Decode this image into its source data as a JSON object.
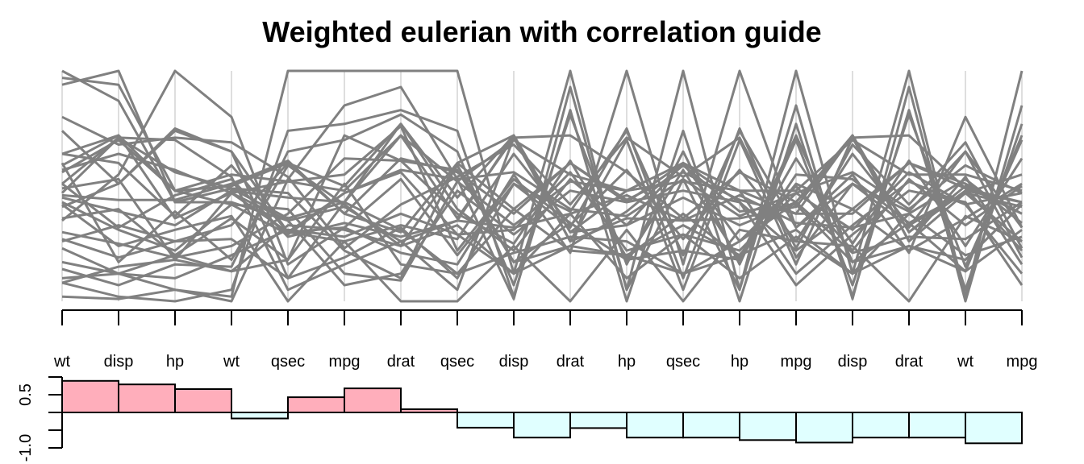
{
  "chart_data": {
    "type": "parallel-coordinates",
    "title": "Weighted eulerian with correlation guide",
    "axes": [
      "wt",
      "disp",
      "hp",
      "wt",
      "qsec",
      "mpg",
      "drat",
      "qsec",
      "disp",
      "drat",
      "hp",
      "qsec",
      "hp",
      "mpg",
      "disp",
      "drat",
      "wt",
      "mpg"
    ],
    "line_color": "#808080",
    "axis_line_color": "#bebebe",
    "series": [
      {
        "values": [
          0.26,
          0.33,
          0.26,
          0.33,
          0.6,
          0.5,
          0.77,
          0.4,
          0.22,
          0.53,
          0.33,
          0.6,
          0.26,
          0.5,
          0.22,
          0.53,
          0.33,
          0.5
        ]
      },
      {
        "values": [
          0.45,
          0.39,
          0.33,
          0.48,
          0.45,
          0.43,
          0.77,
          0.45,
          0.72,
          0.3,
          0.33,
          0.45,
          0.33,
          0.43,
          0.72,
          0.3,
          0.48,
          0.43
        ]
      },
      {
        "values": [
          0.64,
          0.6,
          0.37,
          0.59,
          0.3,
          0.47,
          0.57,
          0.53,
          0.56,
          0.4,
          0.37,
          0.53,
          0.37,
          0.47,
          0.56,
          0.4,
          0.59,
          0.47
        ]
      },
      {
        "values": [
          0.46,
          0.44,
          0.44,
          0.51,
          0.61,
          0.38,
          0.62,
          0.56,
          0.38,
          0.6,
          0.44,
          0.56,
          0.44,
          0.38,
          0.38,
          0.6,
          0.51,
          0.38
        ]
      },
      {
        "values": [
          0.08,
          0.15,
          0.18,
          0.13,
          0.18,
          0.72,
          0.61,
          0.57,
          0.17,
          0.34,
          0.18,
          0.57,
          0.18,
          0.72,
          0.17,
          0.34,
          0.13,
          0.72
        ]
      },
      {
        "values": [
          0.49,
          0.53,
          0.18,
          0.47,
          0.52,
          0.55,
          0.76,
          0.22,
          0.53,
          0.34,
          0.18,
          0.22,
          0.18,
          0.55,
          0.53,
          0.34,
          0.47,
          0.55
        ]
      },
      {
        "values": [
          0.27,
          0.19,
          0.26,
          0.27,
          0.1,
          0.43,
          0.31,
          0.12,
          0.21,
          0.28,
          0.26,
          0.12,
          0.26,
          0.43,
          0.21,
          0.28,
          0.27,
          0.43
        ]
      },
      {
        "values": [
          0.74,
          0.51,
          0.74,
          0.65,
          0.3,
          0.32,
          0.53,
          0.2,
          0.51,
          0.39,
          0.74,
          0.2,
          0.74,
          0.32,
          0.51,
          0.39,
          0.65,
          0.32
        ]
      },
      {
        "values": [
          0.36,
          0.4,
          0.2,
          0.36,
          0.18,
          0.51,
          0.16,
          0.12,
          0.4,
          0.22,
          0.2,
          0.12,
          0.2,
          0.51,
          0.4,
          0.22,
          0.36,
          0.51
        ]
      },
      {
        "values": [
          0.56,
          0.7,
          0.48,
          0.55,
          0.52,
          0.48,
          0.72,
          0.52,
          0.7,
          0.55,
          0.48,
          0.52,
          0.48,
          0.48,
          0.7,
          0.55,
          0.55,
          0.48
        ]
      },
      {
        "values": [
          0.14,
          0.07,
          0.16,
          0.15,
          0.65,
          0.7,
          0.81,
          0.65,
          0.07,
          0.81,
          0.16,
          0.65,
          0.16,
          0.7,
          0.07,
          0.81,
          0.15,
          0.7
        ]
      },
      {
        "values": [
          0.3,
          0.25,
          0.19,
          0.24,
          0.38,
          0.62,
          0.61,
          0.38,
          0.25,
          0.61,
          0.19,
          0.38,
          0.19,
          0.62,
          0.25,
          0.61,
          0.24,
          0.62
        ]
      },
      {
        "values": [
          0.94,
          1.0,
          0.43,
          0.49,
          0.47,
          0.22,
          0.1,
          0.6,
          0.4,
          0.6,
          0.43,
          0.6,
          0.43,
          0.22,
          0.4,
          0.6,
          0.49,
          0.22
        ]
      },
      {
        "values": [
          0.97,
          0.94,
          0.48,
          0.42,
          0.4,
          0.12,
          0.09,
          0.52,
          0.33,
          0.52,
          0.48,
          0.52,
          0.48,
          0.12,
          0.33,
          0.52,
          0.42,
          0.12
        ]
      },
      {
        "values": [
          1.0,
          0.87,
          0.43,
          0.43,
          0.35,
          0.07,
          0.12,
          0.48,
          0.29,
          0.48,
          0.43,
          0.48,
          0.43,
          0.07,
          0.29,
          0.48,
          0.43,
          0.07
        ]
      },
      {
        "values": [
          0.57,
          0.64,
          0.57,
          0.47,
          0.3,
          0.26,
          0.33,
          0.27,
          0.64,
          0.33,
          0.57,
          0.27,
          0.57,
          0.26,
          0.64,
          0.33,
          0.47,
          0.26
        ]
      },
      {
        "values": [
          0.59,
          0.72,
          0.36,
          0.47,
          0.35,
          0.41,
          0.26,
          0.35,
          0.72,
          0.26,
          0.36,
          0.35,
          0.36,
          0.41,
          0.72,
          0.26,
          0.47,
          0.41
        ]
      },
      {
        "values": [
          0.64,
          0.72,
          0.48,
          0.5,
          0.6,
          0.38,
          0.3,
          0.6,
          0.72,
          0.3,
          0.48,
          0.6,
          0.48,
          0.38,
          0.72,
          0.3,
          0.5,
          0.38
        ]
      },
      {
        "values": [
          0.51,
          0.32,
          0.46,
          0.53,
          0.28,
          0.34,
          0.28,
          0.35,
          0.32,
          0.38,
          0.46,
          0.35,
          0.46,
          0.34,
          0.32,
          0.38,
          0.53,
          0.34
        ]
      },
      {
        "values": [
          0.17,
          0.12,
          0.1,
          0.2,
          0.31,
          0.28,
          0.38,
          0.29,
          0.12,
          0.38,
          0.1,
          0.29,
          0.1,
          0.28,
          0.12,
          0.38,
          0.2,
          0.28
        ]
      },
      {
        "values": [
          0.02,
          0.01,
          0.05,
          0.0,
          0.53,
          0.85,
          0.93,
          0.53,
          0.01,
          0.93,
          0.05,
          0.53,
          0.05,
          0.85,
          0.01,
          0.93,
          0.0,
          0.85
        ]
      },
      {
        "values": [
          0.42,
          0.24,
          0.31,
          0.37,
          0.0,
          0.26,
          0.0,
          0.0,
          0.24,
          0.0,
          0.31,
          0.0,
          0.31,
          0.26,
          0.24,
          0.0,
          0.37,
          0.26
        ]
      },
      {
        "values": [
          0.51,
          0.71,
          0.56,
          0.49,
          0.36,
          0.43,
          0.72,
          0.36,
          0.71,
          0.72,
          0.56,
          0.36,
          0.56,
          0.43,
          0.71,
          0.72,
          0.49,
          0.43
        ]
      },
      {
        "values": [
          0.47,
          0.71,
          0.7,
          0.54,
          0.05,
          0.16,
          0.26,
          0.05,
          0.71,
          0.26,
          0.7,
          0.05,
          0.7,
          0.16,
          0.71,
          0.26,
          0.54,
          0.16
        ]
      },
      {
        "values": [
          0.1,
          0.12,
          0.2,
          0.13,
          0.33,
          0.31,
          0.24,
          0.33,
          0.12,
          0.24,
          0.2,
          0.33,
          0.2,
          0.31,
          0.12,
          0.24,
          0.13,
          0.31
        ]
      },
      {
        "values": [
          0.23,
          0.12,
          0.05,
          0.02,
          1.0,
          1.0,
          1.0,
          1.0,
          0.12,
          1.0,
          0.05,
          1.0,
          0.05,
          1.0,
          0.12,
          1.0,
          0.02,
          1.0
        ]
      },
      {
        "values": [
          0.08,
          0.02,
          0.0,
          0.05,
          0.74,
          0.77,
          0.83,
          0.74,
          0.02,
          0.83,
          0.0,
          0.74,
          0.0,
          0.77,
          0.02,
          0.83,
          0.05,
          0.77
        ]
      },
      {
        "values": [
          0.43,
          0.31,
          0.22,
          0.42,
          0.29,
          0.47,
          0.56,
          0.29,
          0.31,
          0.56,
          0.22,
          0.29,
          0.22,
          0.47,
          0.31,
          0.56,
          0.42,
          0.47
        ]
      },
      {
        "values": [
          0.8,
          0.68,
          0.71,
          0.69,
          0.54,
          0.23,
          0.42,
          0.54,
          0.68,
          0.42,
          0.71,
          0.54,
          0.71,
          0.23,
          0.68,
          0.42,
          0.69,
          0.23
        ]
      },
      {
        "values": [
          0.35,
          0.55,
          1.0,
          0.8,
          0.16,
          0.32,
          0.21,
          0.16,
          0.55,
          0.21,
          1.0,
          0.16,
          1.0,
          0.32,
          0.55,
          0.21,
          0.8,
          0.32
        ]
      },
      {
        "values": [
          0.41,
          0.51,
          0.75,
          0.65,
          0.1,
          0.19,
          0.32,
          0.1,
          0.51,
          0.32,
          0.75,
          0.1,
          0.75,
          0.19,
          0.51,
          0.32,
          0.65,
          0.19
        ]
      },
      {
        "values": [
          0.6,
          0.17,
          0.39,
          0.18,
          0.59,
          0.42,
          0.24,
          0.59,
          0.17,
          0.24,
          0.39,
          0.59,
          0.39,
          0.42,
          0.17,
          0.24,
          0.18,
          0.42
        ]
      }
    ],
    "guide": {
      "type": "bar",
      "correlations": [
        0.89,
        0.79,
        0.66,
        -0.17,
        0.43,
        0.68,
        0.09,
        -0.43,
        -0.71,
        -0.44,
        -0.71,
        -0.71,
        -0.78,
        -0.85,
        -0.71,
        -0.71,
        -0.87
      ],
      "ylim": [
        -1.0,
        1.0
      ],
      "tick_labels": [
        "0.5",
        "-1.0"
      ],
      "positive_color": "#ffaebb",
      "negative_color": "#e0ffff"
    }
  }
}
